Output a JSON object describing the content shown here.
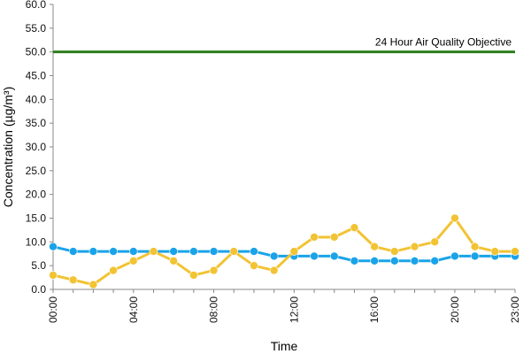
{
  "chart_data": {
    "type": "line",
    "title": "",
    "xlabel": "Time",
    "ylabel": "Concentration (µg/m³)",
    "ylim": [
      0,
      60
    ],
    "y_ticks": [
      "0.0",
      "5.0",
      "10.0",
      "15.0",
      "20.0",
      "25.0",
      "30.0",
      "35.0",
      "40.0",
      "45.0",
      "50.0",
      "55.0",
      "60.0"
    ],
    "x_tick_labels": [
      "00:00",
      "04:00",
      "08:00",
      "12:00",
      "16:00",
      "20:00",
      "23:00"
    ],
    "x_hours": [
      0,
      1,
      2,
      3,
      4,
      5,
      6,
      7,
      8,
      9,
      10,
      11,
      12,
      13,
      14,
      15,
      16,
      17,
      18,
      19,
      20,
      21,
      22,
      23
    ],
    "grid": false,
    "series": [
      {
        "color": "#1aa3e8",
        "values": [
          9,
          8,
          8,
          8,
          8,
          8,
          8,
          8,
          8,
          8,
          8,
          7,
          7,
          7,
          7,
          6,
          6,
          6,
          6,
          6,
          7,
          7,
          7,
          7
        ]
      },
      {
        "color": "#f2c333",
        "values": [
          3,
          2,
          1,
          4,
          6,
          8,
          6,
          3,
          4,
          8,
          5,
          4,
          8,
          11,
          11,
          13,
          9,
          8,
          9,
          10,
          15,
          9,
          8,
          8
        ]
      }
    ],
    "reference_line": {
      "value": 50,
      "label": "24 Hour Air Quality Objective",
      "color": "#2e7d1e"
    }
  }
}
